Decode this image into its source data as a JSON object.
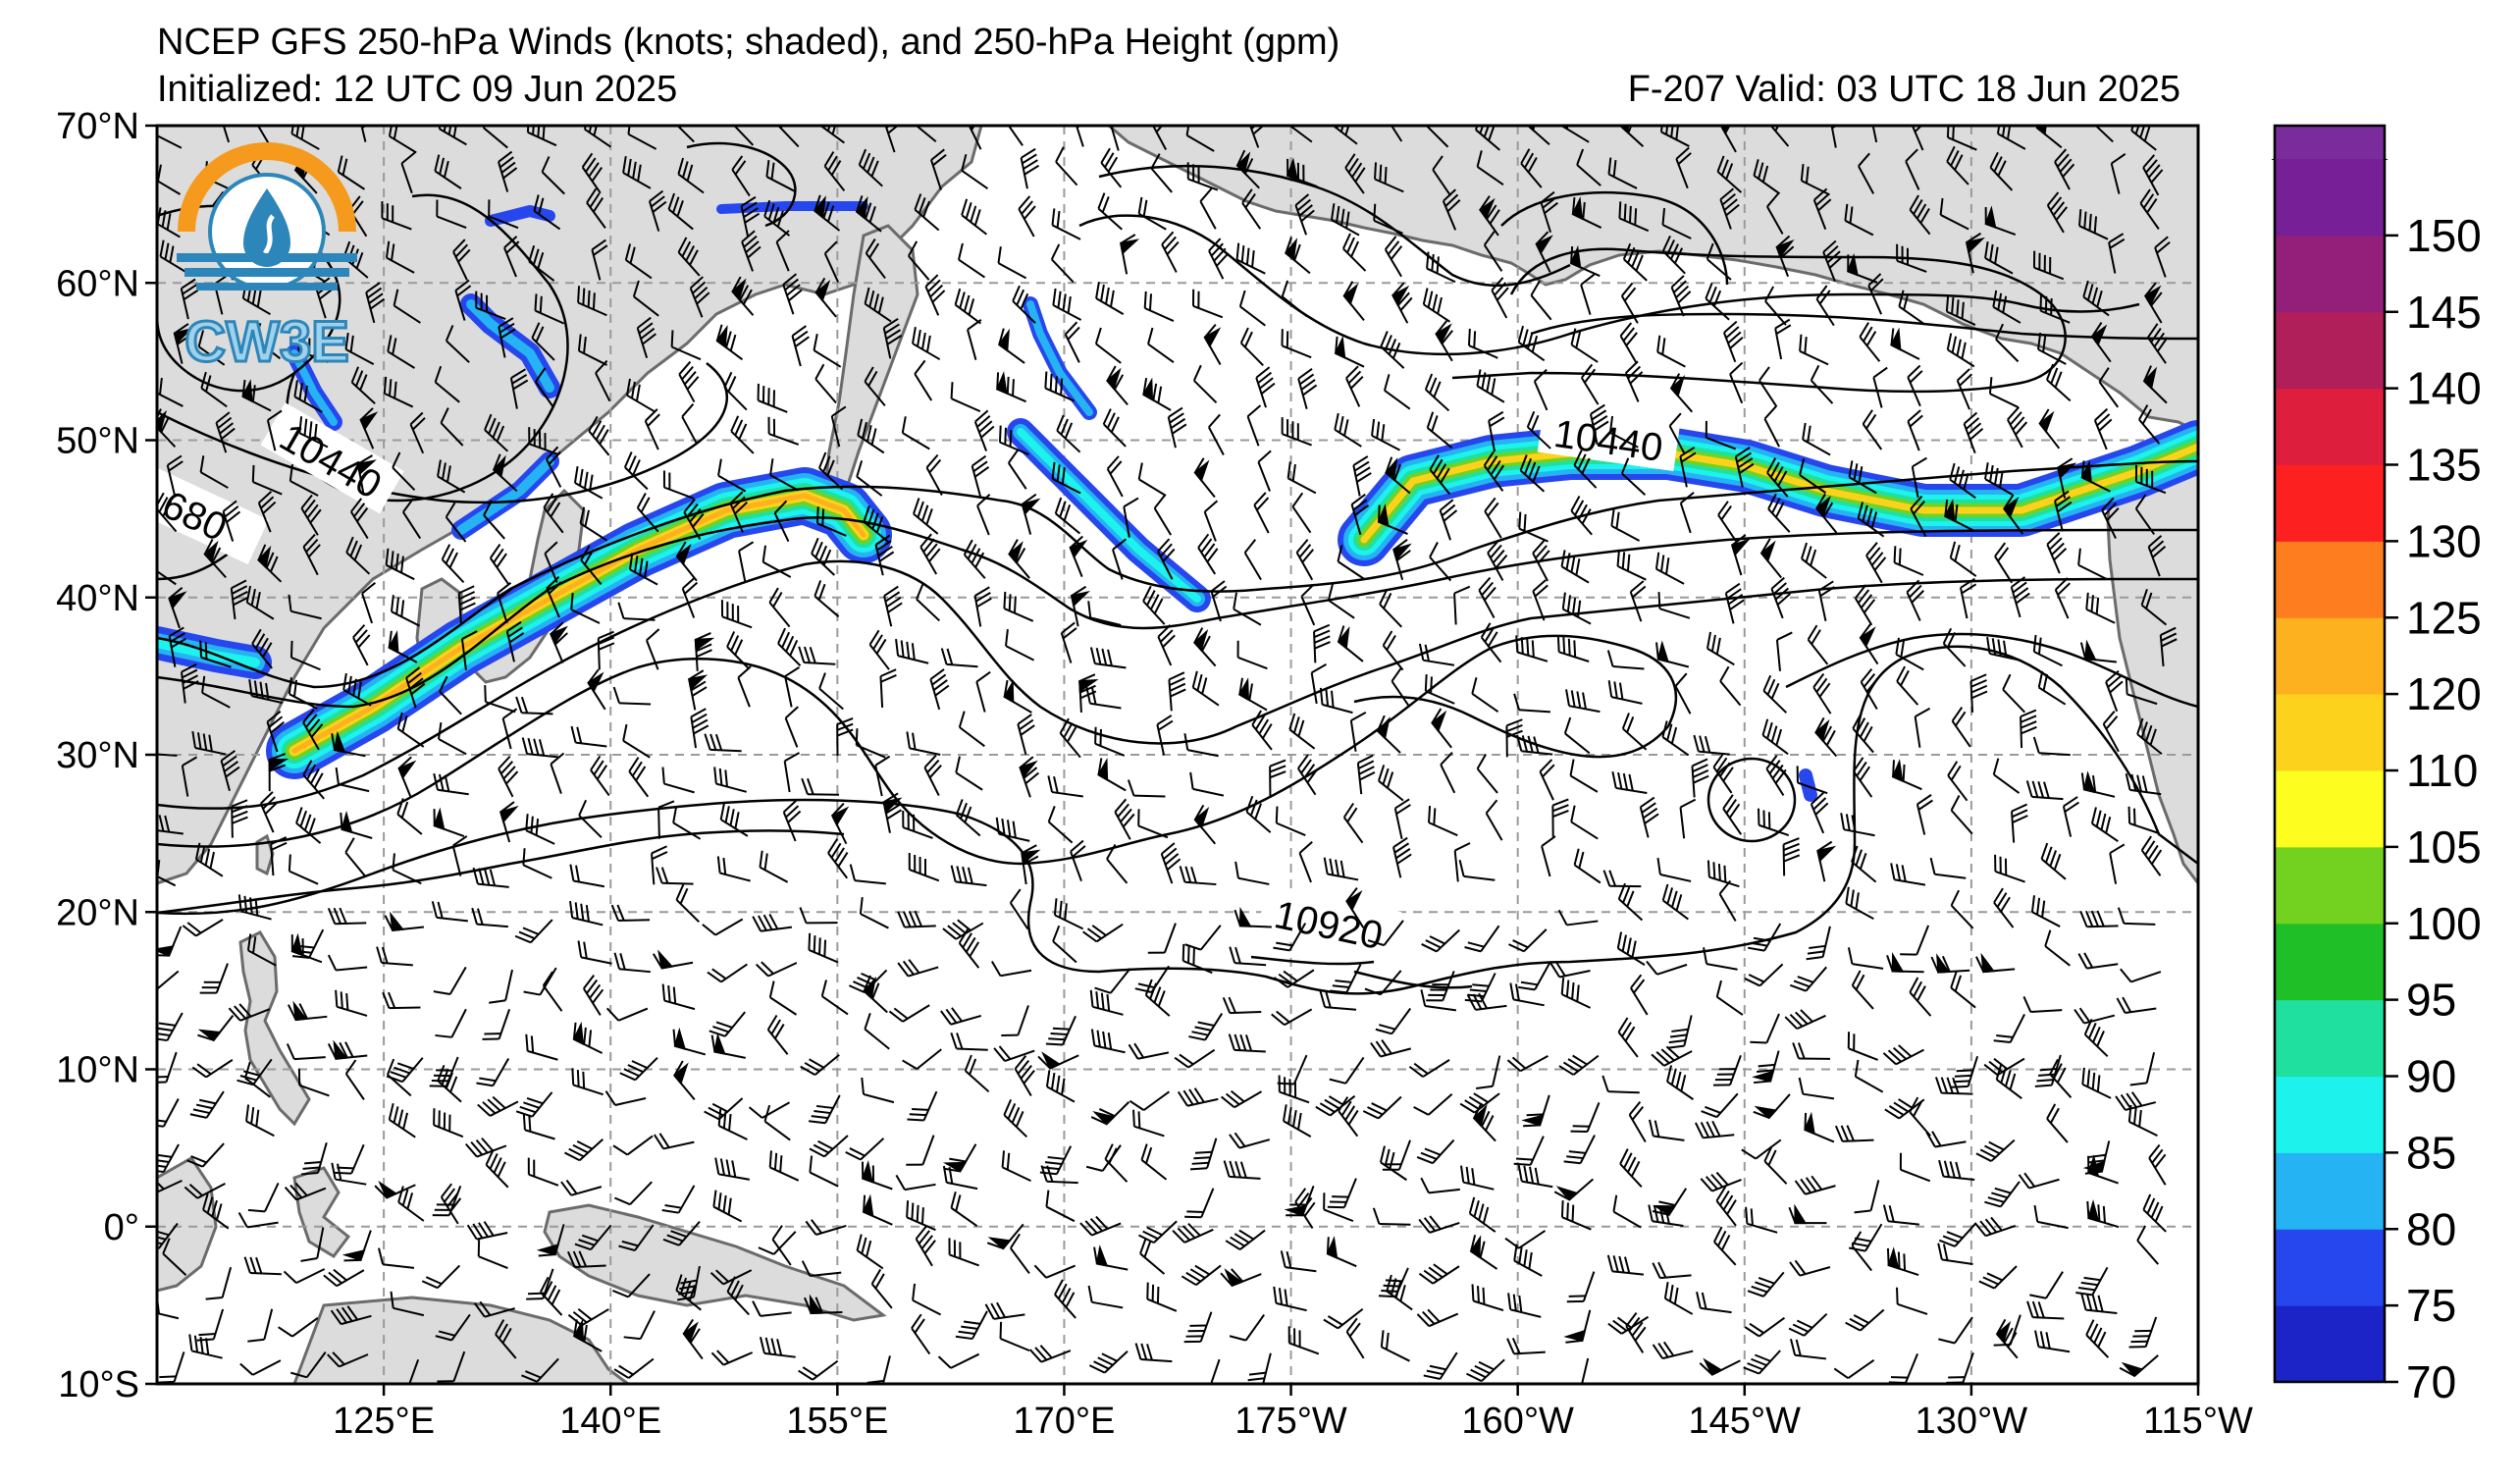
{
  "header": {
    "title": "NCEP GFS 250-hPa Winds (knots; shaded), and 250-hPa Height (gpm)",
    "initialized": "Initialized: 12 UTC 09 Jun 2025",
    "valid": "F-207  Valid: 03 UTC 18 Jun 2025"
  },
  "logo": {
    "text": "CW3E",
    "colors": {
      "orange": "#f59a1d",
      "blue": "#2d86b9",
      "light": "#9fd1ec"
    }
  },
  "map": {
    "lon_range": [
      110,
      245
    ],
    "lat_range": [
      -10,
      70
    ],
    "lon_ticks": [
      {
        "lon": 125,
        "label": "125°E"
      },
      {
        "lon": 140,
        "label": "140°E"
      },
      {
        "lon": 155,
        "label": "155°E"
      },
      {
        "lon": 170,
        "label": "170°E"
      },
      {
        "lon": 185,
        "label": "175°W"
      },
      {
        "lon": 200,
        "label": "160°W"
      },
      {
        "lon": 215,
        "label": "145°W"
      },
      {
        "lon": 230,
        "label": "130°W"
      },
      {
        "lon": 245,
        "label": "115°W"
      }
    ],
    "lat_ticks": [
      {
        "lat": 70,
        "label": "70°N"
      },
      {
        "lat": 60,
        "label": "60°N"
      },
      {
        "lat": 50,
        "label": "50°N"
      },
      {
        "lat": 40,
        "label": "40°N"
      },
      {
        "lat": 30,
        "label": "30°N"
      },
      {
        "lat": 20,
        "label": "20°N"
      },
      {
        "lat": 10,
        "label": "10°N"
      },
      {
        "lat": 0,
        "label": "0°"
      },
      {
        "lat": -10,
        "label": "10°S"
      }
    ],
    "contour_labels": [
      {
        "text": "10440",
        "lon": 121.5,
        "lat": 48.7,
        "angle": 30
      },
      {
        "text": "680",
        "lon": 112.5,
        "lat": 45.2,
        "angle": 25
      },
      {
        "text": "10440",
        "lon": 206,
        "lat": 50.0,
        "angle": 8
      },
      {
        "text": "10920",
        "lon": 187.5,
        "lat": 19.2,
        "angle": 12
      }
    ]
  },
  "colorbar": {
    "levels": [
      70,
      75,
      80,
      85,
      90,
      95,
      100,
      105,
      110,
      120,
      125,
      130,
      135,
      140,
      145,
      150
    ],
    "colors": [
      "#1c24c8",
      "#2747ee",
      "#25b3f4",
      "#1df2ec",
      "#20e0a0",
      "#1fbf27",
      "#72d21f",
      "#fdfd1f",
      "#fdd21c",
      "#fdb11f",
      "#fd7d1f",
      "#fd2020",
      "#dd1e3c",
      "#b01f5a",
      "#931f7b",
      "#771f96"
    ],
    "top_cap_color": "#7b2c9c"
  }
}
